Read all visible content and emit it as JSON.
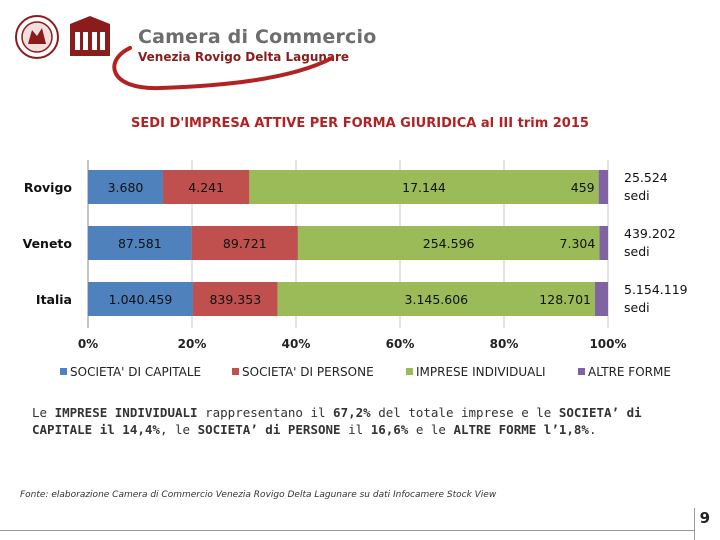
{
  "header": {
    "org_name": "Camera di Commercio",
    "org_sub": "Venezia Rovigo Delta Lagunare"
  },
  "chart_data": {
    "type": "bar",
    "orientation": "horizontal",
    "stacked": "percent",
    "title": "SEDI D'IMPRESA ATTIVE PER FORMA GIURIDICA al III trim 2015",
    "categories": [
      "Rovigo",
      "Veneto",
      "Italia"
    ],
    "series": [
      {
        "name": "SOCIETA' DI CAPITALE",
        "values": [
          3680,
          87581,
          1040459
        ],
        "labels": [
          "3.680",
          "87.581",
          "1.040.459"
        ],
        "color": "#4f81bd"
      },
      {
        "name": "SOCIETA' DI PERSONE",
        "values": [
          4241,
          89721,
          839353
        ],
        "labels": [
          "4.241",
          "89.721",
          "839.353"
        ],
        "color": "#c0504d"
      },
      {
        "name": "IMPRESE INDIVIDUALI",
        "values": [
          17144,
          254596,
          3145606
        ],
        "labels": [
          "17.144",
          "254.596",
          "3.145.606"
        ],
        "color": "#9bbb59"
      },
      {
        "name": "ALTRE FORME",
        "values": [
          459,
          7304,
          128701
        ],
        "labels": [
          "459",
          "7.304",
          "128.701"
        ],
        "color": "#8064a2"
      }
    ],
    "totals": [
      {
        "value": "25.524",
        "unit": "sedi"
      },
      {
        "value": "439.202",
        "unit": "sedi"
      },
      {
        "value": "5.154.119",
        "unit": "sedi"
      }
    ],
    "x_ticks": [
      "0%",
      "20%",
      "40%",
      "60%",
      "80%",
      "100%"
    ],
    "xlim": [
      0,
      100
    ],
    "legend_position": "bottom",
    "grid": "vertical"
  },
  "description": {
    "p1": "Le ",
    "s1": "IMPRESE INDIVIDUALI",
    "p2": " rappresentano il ",
    "s2": "67,2%",
    "p3": " del totale imprese e le ",
    "s3": "SOCIETA’ di CAPITALE il 14,4%",
    "p4": ", le ",
    "s4": "SOCIETA’ di PERSONE",
    "p5": " il ",
    "s5": "16,6%",
    "p6": " e le ",
    "s6": "ALTRE FORME l’1,8%",
    "p7": "."
  },
  "footer": {
    "source": "Fonte: elaborazione Camera di Commercio Venezia Rovigo Delta Lagunare su dati Infocamere Stock View",
    "page_number": "9"
  }
}
